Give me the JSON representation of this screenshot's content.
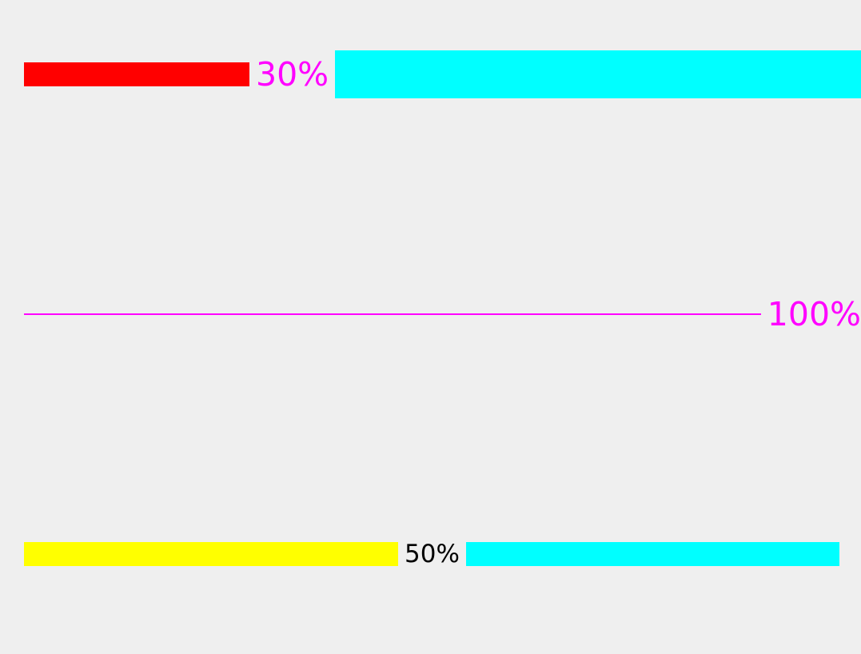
{
  "progress_bars": [
    {
      "percent_label": "30%",
      "progress": 0.3,
      "fill_color": "#ff0000",
      "remainder_color": "#00ffff",
      "label_color": "#ff00ff"
    },
    {
      "percent_label": "100%",
      "progress": 1.0,
      "fill_color": "#ff00ff",
      "label_color": "#ff00ff"
    },
    {
      "percent_label": "50%",
      "progress": 0.5,
      "fill_color": "#ffff00",
      "remainder_color": "#00ffff",
      "label_color": "#000000"
    }
  ]
}
